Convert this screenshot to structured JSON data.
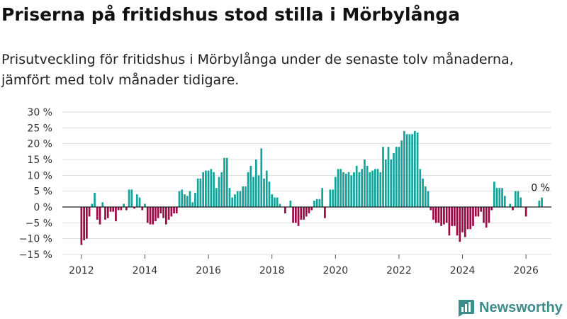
{
  "title": "Priserna på fritidshus stod stilla i Mörbylånga",
  "subtitle": "Prisutveckling för fritidshus i Mörbylånga under de senaste tolv månaderna, jämfört med tolv månader tidigare.",
  "logo": {
    "text": "Newsworthy",
    "icon": "bar-chart-logo-icon"
  },
  "colors": {
    "positive": "#12a39a",
    "negative": "#9c0945",
    "grid": "#dddddd",
    "zero_line": "#222222",
    "logo": "#3d8c8c"
  },
  "chart_data": {
    "type": "bar",
    "title": "Priserna på fritidshus stod stilla i Mörbylånga",
    "xlabel": "",
    "ylabel": "",
    "ylim": [
      -15,
      30
    ],
    "xlim": [
      2011.4,
      2026.8
    ],
    "grid": true,
    "y_ticks": [
      -15,
      -10,
      -5,
      0,
      5,
      10,
      15,
      20,
      25,
      30
    ],
    "y_tick_labels": [
      "−15 %",
      "−10 %",
      "−5 %",
      "0 %",
      "5 %",
      "10 %",
      "15 %",
      "20 %",
      "25 %",
      "30 %"
    ],
    "x_ticks": [
      2012,
      2014,
      2016,
      2018,
      2020,
      2022,
      2024,
      2026
    ],
    "x_tick_labels": [
      "2012",
      "2014",
      "2016",
      "2018",
      "2020",
      "2022",
      "2024",
      "2026"
    ],
    "start_year": 2012,
    "start_month": 1,
    "values": [
      -12,
      -10.5,
      -10,
      -3,
      1,
      4.5,
      -4,
      -5.5,
      1.5,
      -4,
      -3.5,
      -1.5,
      -1.5,
      -4.5,
      -1,
      -1,
      1,
      -1,
      5.5,
      5.5,
      -0.5,
      4,
      3,
      -1,
      1,
      -5,
      -5.5,
      -5.5,
      -4.5,
      -3.5,
      -2,
      -3.5,
      -5.5,
      -4,
      -3,
      -2,
      -2,
      5,
      5.5,
      4,
      3.5,
      5,
      1.5,
      4.5,
      9,
      9,
      11,
      11.5,
      11.5,
      12,
      11,
      6,
      9.5,
      11,
      15.5,
      15.5,
      6,
      3,
      4,
      5,
      5,
      6.5,
      6.5,
      11,
      13,
      9.5,
      15,
      10,
      18.5,
      9,
      11.5,
      8,
      4,
      3,
      3,
      1,
      0,
      -2,
      0,
      2,
      -5,
      -5,
      -6,
      -4,
      -4,
      -3,
      -2,
      -1,
      2,
      2.5,
      2.5,
      6,
      -3.5,
      0,
      5.5,
      5.5,
      9.5,
      12,
      12,
      11,
      10.5,
      11,
      10,
      11,
      13,
      11,
      12,
      15,
      13,
      11,
      11.5,
      12,
      12,
      11,
      19,
      15,
      19,
      15,
      17,
      19,
      19,
      21,
      24,
      23,
      23,
      23,
      24,
      23.5,
      12,
      9,
      6.5,
      5,
      -1,
      -4,
      -5,
      -5,
      -6,
      -5.5,
      -5,
      -9,
      -6,
      -6,
      -9,
      -11,
      -8,
      -9.5,
      -7,
      -7,
      -6,
      -3,
      -3,
      -1.5,
      -5,
      -6.5,
      -5,
      -1,
      8,
      6,
      6,
      6,
      3.5,
      0,
      1,
      -1,
      5,
      5,
      3,
      0,
      -3,
      0,
      0,
      0,
      0,
      2,
      3
    ],
    "annotations": [
      {
        "label": "0 %",
        "near": "last-bar",
        "value": 0
      }
    ]
  }
}
